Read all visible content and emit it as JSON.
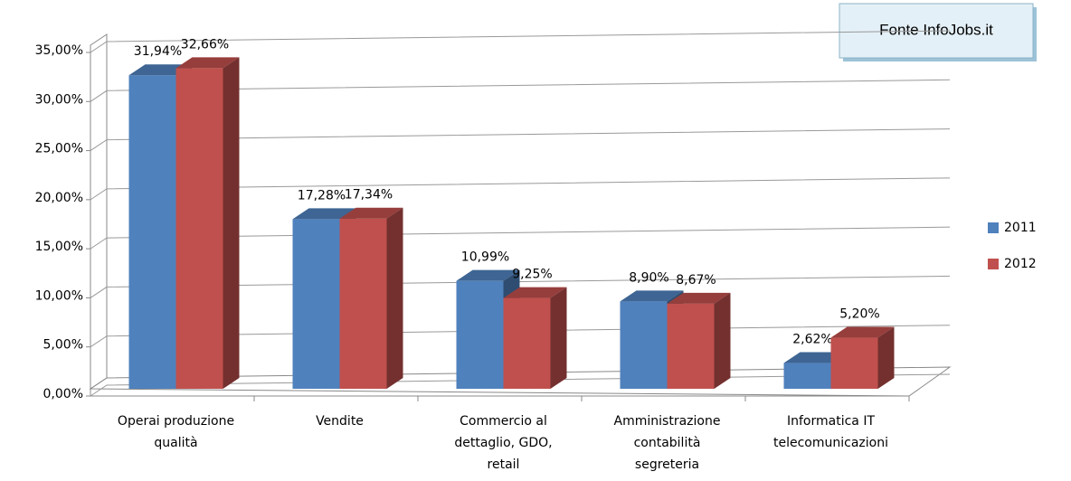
{
  "chart_data": {
    "type": "bar3d",
    "annotation": "Fonte InfoJobs.it",
    "categories": [
      [
        "Operai produzione",
        "qualità"
      ],
      [
        "Vendite"
      ],
      [
        "Commercio al",
        "dettaglio, GDO,",
        "retail"
      ],
      [
        "Amministrazione",
        "contabilità",
        "segreteria"
      ],
      [
        "Informatica IT",
        "telecomunicazioni"
      ]
    ],
    "series": [
      {
        "name": "2011",
        "color": "#4f81bd",
        "values": [
          31.94,
          17.28,
          10.99,
          8.9,
          2.62
        ],
        "value_labels": [
          "31,94%",
          "17,28%",
          "10,99%",
          "8,90%",
          "2,62%"
        ]
      },
      {
        "name": "2012",
        "color": "#c0504d",
        "values": [
          32.66,
          17.34,
          9.25,
          8.67,
          5.2
        ],
        "value_labels": [
          "32,66%",
          "17,34%",
          "9,25%",
          "8,67%",
          "5,20%"
        ]
      }
    ],
    "ylim": [
      0,
      35
    ],
    "yticks": [
      {
        "value": 0,
        "label": "0,00%"
      },
      {
        "value": 5,
        "label": "5,00%"
      },
      {
        "value": 10,
        "label": "10,00%"
      },
      {
        "value": 15,
        "label": "15,00%"
      },
      {
        "value": 20,
        "label": "20,00%"
      },
      {
        "value": 25,
        "label": "25,00%"
      },
      {
        "value": 30,
        "label": "30,00%"
      },
      {
        "value": 35,
        "label": "35,00%"
      }
    ],
    "grid": true,
    "legend": "right"
  }
}
